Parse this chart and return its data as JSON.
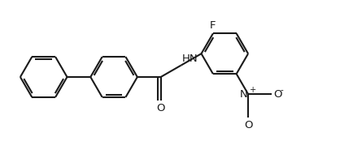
{
  "background_color": "#ffffff",
  "line_color": "#1a1a1a",
  "line_width": 1.5,
  "dbo": 0.055,
  "font_size": 9.5,
  "figsize": [
    4.34,
    1.9
  ],
  "dpi": 100,
  "xlim": [
    0,
    8.68
  ],
  "ylim": [
    0,
    3.8
  ],
  "r": 0.58
}
